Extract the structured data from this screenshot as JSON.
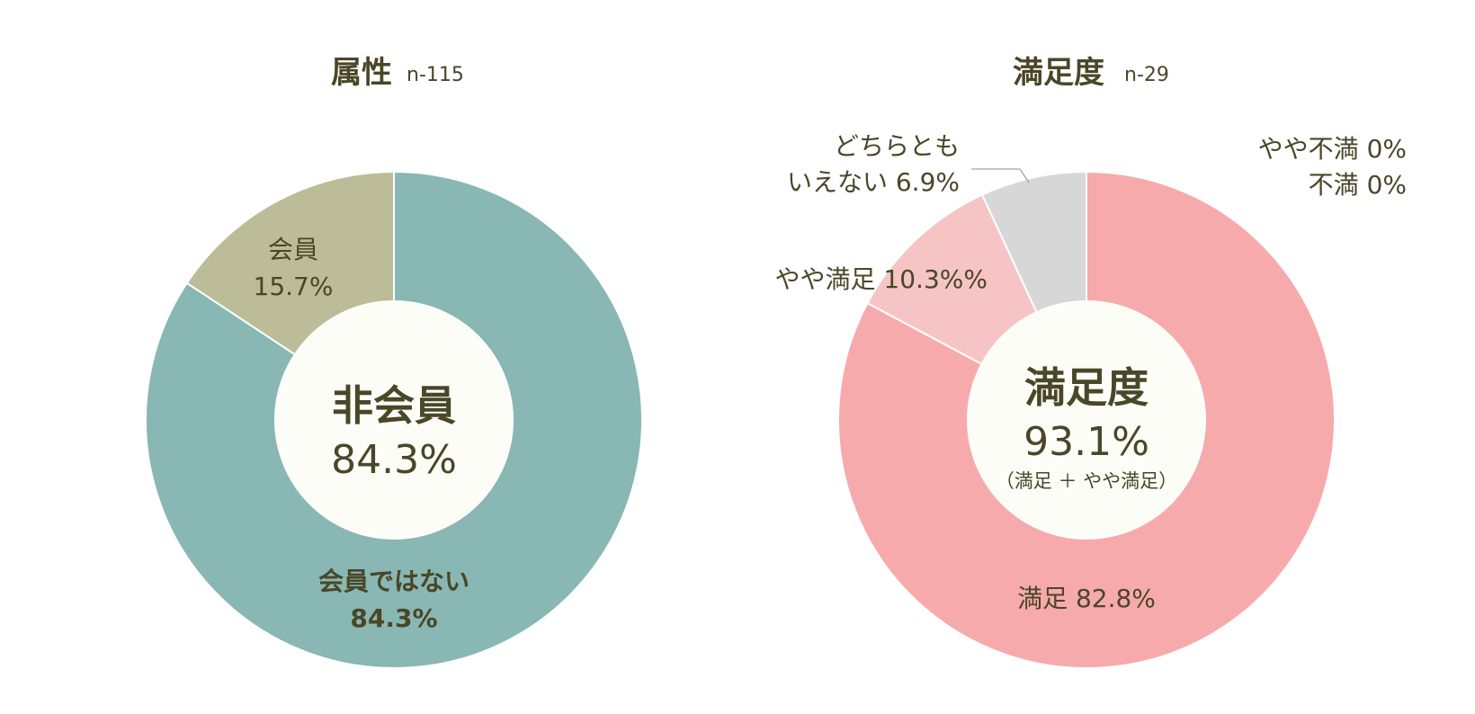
{
  "chart_data": [
    {
      "type": "pie",
      "title": "属性",
      "sample_note": "n-115",
      "center": {
        "line1": "非会員",
        "line2": "84.3%"
      },
      "slices": [
        {
          "name": "会員ではない",
          "value": 84.3,
          "label_line1": "会員ではない",
          "label_line2": "84.3%",
          "color": "#89b7b3"
        },
        {
          "name": "会員",
          "value": 15.7,
          "label_line1": "会員",
          "label_line2": "15.7%",
          "color": "#bcbc98"
        }
      ]
    },
    {
      "type": "pie",
      "title": "満足度",
      "sample_note": "n-29",
      "center": {
        "line1": "満足度",
        "line2": "93.1%",
        "line3": "（満足 ＋ やや満足）"
      },
      "slices": [
        {
          "name": "満足",
          "value": 82.8,
          "label_line1": "満足 82.8%",
          "color": "#f7aaac"
        },
        {
          "name": "やや満足",
          "value": 10.3,
          "label_line1": "やや満足 10.3%%",
          "color": "#f6c4c5"
        },
        {
          "name": "どちらともいえない",
          "value": 6.9,
          "label_line1": "どちらとも",
          "label_line2": "いえない 6.9%",
          "color": "#d7d7d7"
        },
        {
          "name": "やや不満",
          "value": 0,
          "label_line1": "やや不満 0%",
          "color": "#cccccc"
        },
        {
          "name": "不満",
          "value": 0,
          "label_line1": "不満 0%",
          "color": "#cccccc"
        }
      ]
    }
  ],
  "colors": {
    "text": "#4a4628",
    "center_fill": "#fdfdf8",
    "separator": "#ffffff",
    "leader_line": "#888888"
  }
}
